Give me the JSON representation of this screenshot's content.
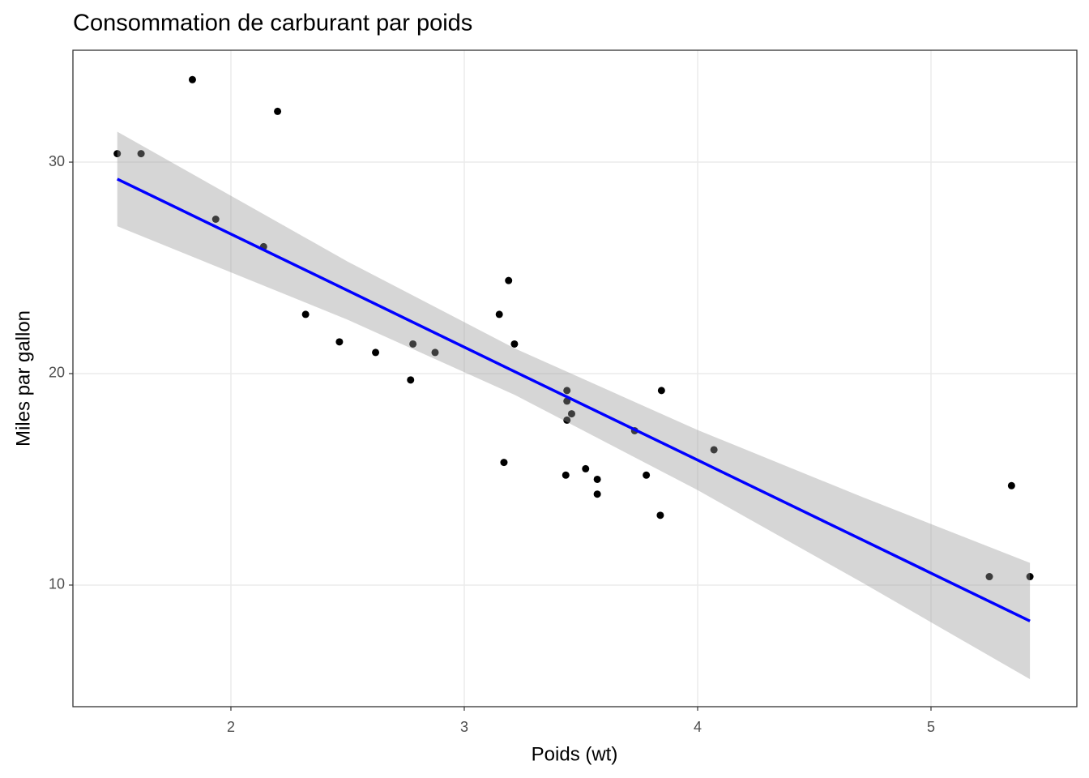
{
  "chart_data": {
    "type": "scatter",
    "title": "Consommation de carburant par poids",
    "x_label": "Poids (wt)",
    "y_label": "Miles par gallon",
    "x": [
      2.62,
      2.875,
      2.32,
      3.215,
      3.44,
      3.46,
      3.57,
      3.19,
      3.15,
      3.44,
      3.44,
      4.07,
      3.73,
      3.78,
      5.25,
      5.424,
      5.345,
      2.2,
      1.615,
      1.835,
      2.465,
      3.52,
      3.435,
      3.84,
      3.845,
      1.935,
      2.14,
      1.513,
      3.17,
      2.77,
      3.57,
      2.78
    ],
    "values": [
      21.0,
      21.0,
      22.8,
      21.4,
      18.7,
      18.1,
      14.3,
      24.4,
      22.8,
      19.2,
      17.8,
      16.4,
      17.3,
      15.2,
      10.4,
      10.4,
      14.7,
      32.4,
      30.4,
      33.9,
      21.5,
      15.5,
      15.2,
      13.3,
      19.2,
      27.3,
      26.0,
      30.4,
      15.8,
      19.7,
      15.0,
      21.4
    ],
    "color": "#000000",
    "fit": {
      "x": [
        1.513,
        2.5,
        3.217,
        4.0,
        4.7,
        5.424
      ],
      "values": [
        29.2,
        23.93,
        20.09,
        15.91,
        12.17,
        8.3
      ],
      "lower": [
        26.97,
        22.55,
        18.99,
        14.49,
        10.15,
        5.55
      ],
      "upper": [
        31.44,
        25.3,
        21.19,
        17.33,
        14.19,
        11.05
      ],
      "color": "#0000ff",
      "band_color": "#999999"
    },
    "xlim": [
      1.323,
      5.625
    ],
    "ylim": [
      4.25,
      35.29
    ],
    "xticks": [
      2,
      3,
      4,
      5
    ],
    "yticks": [
      10,
      20,
      30
    ],
    "grid": true
  }
}
